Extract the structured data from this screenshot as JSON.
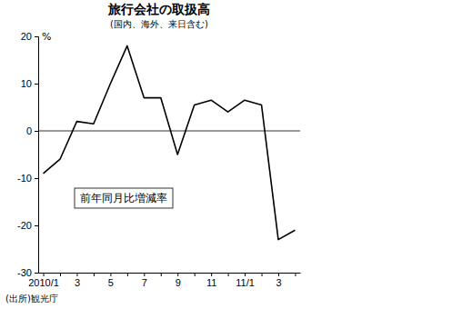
{
  "chart_data": {
    "type": "line",
    "title": "旅行会社の取扱高",
    "subtitle": "(国内、海外、来日含む)",
    "y_label": "%",
    "source": "(出所)観光庁",
    "categories": [
      "2010/1",
      null,
      "3",
      null,
      "5",
      null,
      "7",
      null,
      "9",
      null,
      "11",
      null,
      "11/1",
      null,
      "3",
      null
    ],
    "series": [
      {
        "name": "前年同月比増減率",
        "color": "#000000",
        "values": [
          -9,
          -6,
          2,
          1.5,
          10,
          18,
          7,
          7,
          -5,
          5.5,
          6.5,
          4,
          6.5,
          5.5,
          -23,
          -21
        ]
      }
    ],
    "ylim": [
      -30,
      20
    ],
    "yticks": [
      -30,
      -20,
      -10,
      0,
      10,
      20
    ],
    "grid": false,
    "legend": "lower left"
  }
}
